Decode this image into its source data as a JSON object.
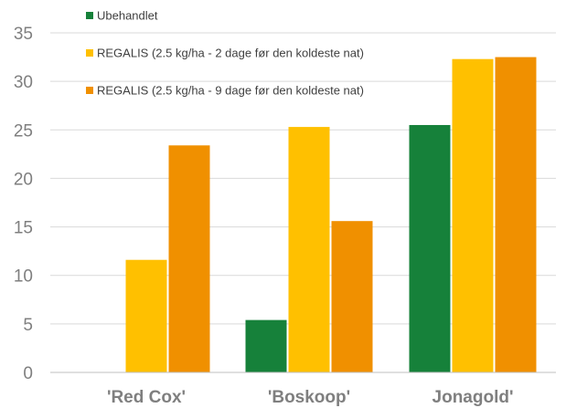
{
  "chart_data": {
    "type": "bar",
    "categories": [
      "'Red Cox'",
      "'Boskoop'",
      "Jonagold'"
    ],
    "series": [
      {
        "name": "Ubehandlet",
        "values": [
          0,
          5.4,
          25.5
        ],
        "color": "#16813a"
      },
      {
        "name": "REGALIS (2.5 kg/ha - 2 dage før den koldeste nat)",
        "values": [
          11.6,
          25.3,
          32.3
        ],
        "color": "#ffc000"
      },
      {
        "name": "REGALIS (2.5 kg/ha - 9 dage før den koldeste nat)",
        "values": [
          23.4,
          15.6,
          32.5
        ],
        "color": "#f09000"
      }
    ],
    "ylim": [
      0,
      35
    ],
    "yticks": [
      0,
      5,
      10,
      15,
      20,
      25,
      30,
      35
    ],
    "grid": true,
    "legend_position": "top-left",
    "title": "",
    "xlabel": "",
    "ylabel": ""
  }
}
